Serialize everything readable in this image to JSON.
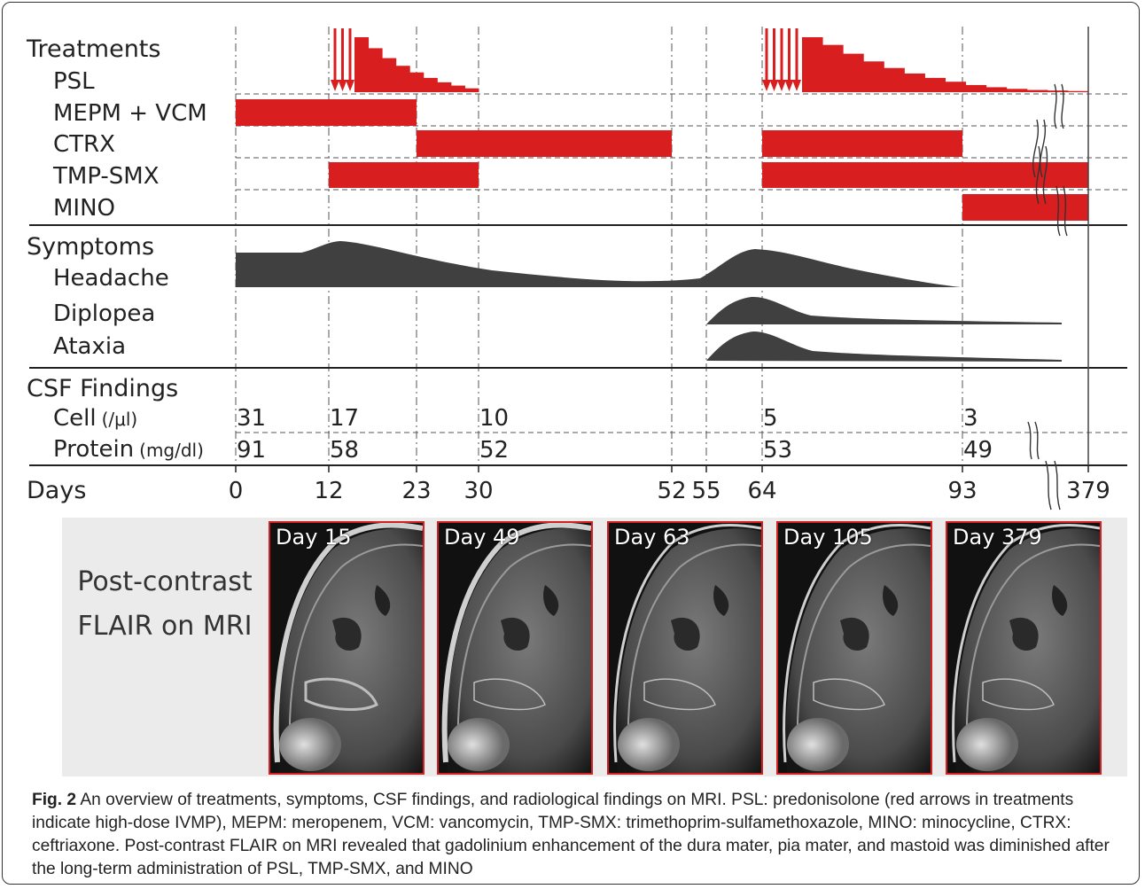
{
  "sections": {
    "treatments": "Treatments",
    "symptoms": "Symptoms",
    "csf": "CSF Findings"
  },
  "rows": {
    "psl": "PSL",
    "mepm_vcm": "MEPM + VCM",
    "ctrx": "CTRX",
    "tmp_smx": "TMP-SMX",
    "mino": "MINO",
    "headache": "Headache",
    "diplopea": "Diplopea",
    "ataxia": "Ataxia",
    "cell": "Cell",
    "cell_unit": "(/μl)",
    "protein": "Protein",
    "protein_unit": "(mg/dl)"
  },
  "axis": {
    "label": "Days",
    "ticks": [
      "0",
      "12",
      "23",
      "30",
      "52",
      "55",
      "64",
      "93",
      "379"
    ]
  },
  "chart_data": {
    "type": "table",
    "days": [
      0,
      12,
      23,
      30,
      52,
      55,
      64,
      93,
      379
    ],
    "axis_break": "between 93 and 379",
    "treatments": [
      {
        "name": "MEPM + VCM",
        "start": 0,
        "end": 23
      },
      {
        "name": "CTRX",
        "start": 23,
        "end": 52
      },
      {
        "name": "CTRX",
        "start": 64,
        "end": 93
      },
      {
        "name": "TMP-SMX",
        "start": 12,
        "end": 30
      },
      {
        "name": "TMP-SMX",
        "start": 64,
        "end": 379
      },
      {
        "name": "MINO",
        "start": 93,
        "end": 379
      }
    ],
    "psl": {
      "high_dose_ivmp_courses": [
        {
          "start": 12,
          "pulses": 3
        },
        {
          "start": 64,
          "pulses": 5
        }
      ],
      "taper_1": {
        "start": 15,
        "end": 30,
        "relative_levels": [
          1.0,
          0.8,
          0.62,
          0.48,
          0.36,
          0.26,
          0.18,
          0.12,
          0.07
        ]
      },
      "taper_2": {
        "start": 68,
        "end": 379,
        "relative_levels": [
          1.0,
          0.86,
          0.7,
          0.56,
          0.44,
          0.34,
          0.26,
          0.19,
          0.13,
          0.09,
          0.06,
          0.04,
          0.03,
          0.02
        ]
      }
    },
    "symptoms": [
      {
        "name": "Headache",
        "start": 0,
        "end": 93,
        "peaks_near": [
          15,
          64
        ]
      },
      {
        "name": "Diplopea",
        "start": 55,
        "end": 379,
        "peak_near": 64
      },
      {
        "name": "Ataxia",
        "start": 55,
        "end": 379,
        "peak_near": 64
      }
    ],
    "csf": [
      {
        "day": 0,
        "cell": 31,
        "protein": 91
      },
      {
        "day": 12,
        "cell": 17,
        "protein": 58
      },
      {
        "day": 30,
        "cell": 10,
        "protein": 52
      },
      {
        "day": 64,
        "cell": 5,
        "protein": 53
      },
      {
        "day": 93,
        "cell": 3,
        "protein": 49
      }
    ],
    "colors": {
      "treatment_bar": "#d81e1e",
      "symptom_fill": "#404040"
    }
  },
  "mri": {
    "label_line1": "Post-contrast",
    "label_line2": "FLAIR on MRI",
    "tiles": [
      {
        "label": "Day 15"
      },
      {
        "label": "Day 49"
      },
      {
        "label": "Day 63"
      },
      {
        "label": "Day 105"
      },
      {
        "label": "Day 379"
      }
    ],
    "border_color": "#d32020"
  },
  "caption": {
    "fig": "Fig. 2",
    "text": " An overview of treatments, symptoms, CSF findings, and radiological findings on MRI. PSL: predonisolone (red arrows in treatments indicate high-dose IVMP), MEPM: meropenem, VCM: vancomycin, TMP-SMX: trimethoprim-sulfamethoxazole, MINO: minocycline, CTRX: ceftriaxone. Post-contrast FLAIR on MRI revealed that gadolinium enhancement of the dura mater, pia mater, and mastoid was diminished after the long-term administration of PSL, TMP-SMX, and MINO"
  }
}
